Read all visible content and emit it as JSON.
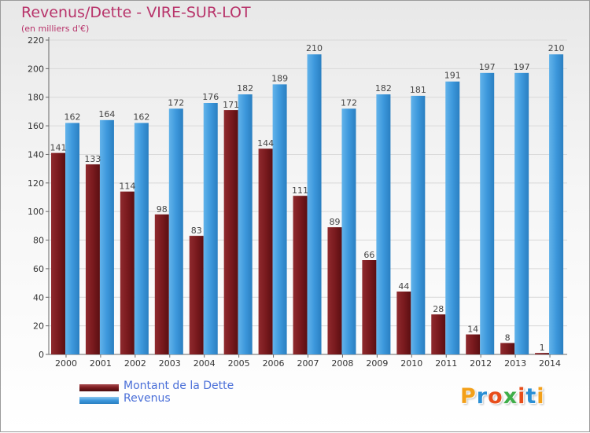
{
  "title": "Revenus/Dette - VIRE-SUR-LOT",
  "subtitle": "(en milliers d'€)",
  "colors": {
    "debt": "#7a1a1e",
    "revenue": "#3d98dc",
    "title": "#b8336a",
    "legend_text": "#4a6fd8"
  },
  "logo": {
    "letters": [
      "P",
      "r",
      "o",
      "x",
      "i",
      "t",
      "i"
    ],
    "colors": [
      "#f3a019",
      "#2a8fd5",
      "#e84e1b",
      "#3fae49",
      "#e84e1b",
      "#2a8fd5",
      "#f3a019"
    ]
  },
  "chart_data": {
    "type": "bar",
    "categories": [
      "2000",
      "2001",
      "2002",
      "2003",
      "2004",
      "2005",
      "2006",
      "2007",
      "2008",
      "2009",
      "2010",
      "2011",
      "2012",
      "2013",
      "2014"
    ],
    "series": [
      {
        "name": "Montant de la Dette",
        "values": [
          141,
          133,
          114,
          98,
          83,
          171,
          144,
          111,
          89,
          66,
          44,
          28,
          14,
          8,
          1
        ]
      },
      {
        "name": "Revenus",
        "values": [
          162,
          164,
          162,
          172,
          176,
          182,
          189,
          210,
          172,
          182,
          181,
          191,
          197,
          197,
          210
        ]
      }
    ],
    "ylim": [
      0,
      220
    ],
    "yticks": [
      0,
      20,
      40,
      60,
      80,
      100,
      120,
      140,
      160,
      180,
      200,
      220
    ],
    "grid": true,
    "legend": "bottom-left",
    "xlabel": "",
    "ylabel": ""
  }
}
